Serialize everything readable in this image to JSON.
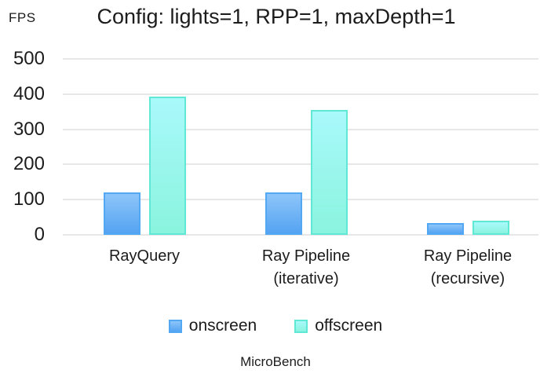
{
  "chart_data": {
    "type": "bar",
    "title": "Config: lights=1, RPP=1, maxDepth=1",
    "ylabel": "FPS",
    "footer": "MicroBench",
    "categories": [
      {
        "lines": [
          "RayQuery"
        ]
      },
      {
        "lines": [
          "Ray Pipeline",
          "(iterative)"
        ]
      },
      {
        "lines": [
          "Ray Pipeline",
          "(recursive)"
        ]
      }
    ],
    "series": [
      {
        "name": "onscreen",
        "values": [
          120,
          120,
          33
        ],
        "fill_top": "#8dc5f9",
        "fill_bottom": "#54a3f2",
        "border": "#53a8f3"
      },
      {
        "name": "offscreen",
        "values": [
          392,
          354,
          40
        ],
        "fill_top": "#a9f9fb",
        "fill_bottom": "#8af4de",
        "border": "#5fe8d6"
      }
    ],
    "ylim": [
      0,
      500
    ],
    "yticks": [
      0,
      100,
      200,
      300,
      400,
      500
    ],
    "grid": true,
    "legend_position": "bottom",
    "colors": {
      "text": "#1c1c1c",
      "gridline": "#e7e7e7",
      "background": "#ffffff"
    }
  }
}
